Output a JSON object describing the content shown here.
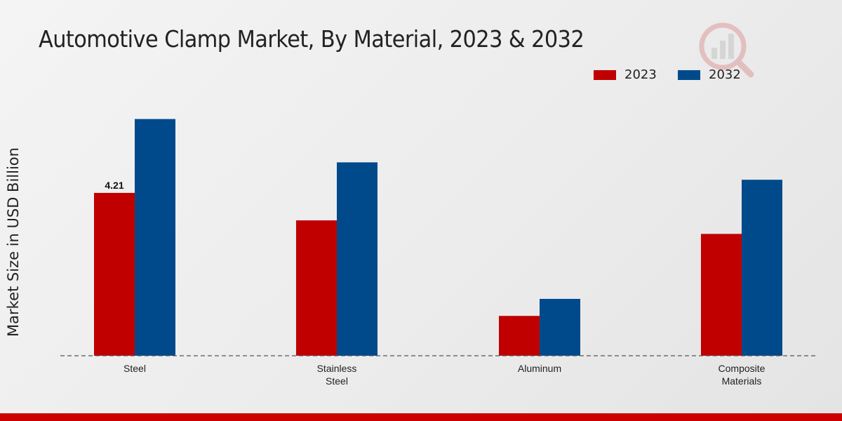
{
  "header": {
    "title": "Automotive Clamp Market, By Material, 2023 & 2032"
  },
  "legend": [
    {
      "label": "2023",
      "color": "#c00000"
    },
    {
      "label": "2032",
      "color": "#004a8c"
    }
  ],
  "logo": {
    "icon": "bar-chart-magnifier-icon",
    "color": "#c00000"
  },
  "footer": {
    "bar_color": "#cc0000"
  },
  "chart_data": {
    "type": "bar",
    "title": "Automotive Clamp Market, By Material, 2023 & 2032",
    "xlabel": "",
    "ylabel": "Market Size in USD Billion",
    "categories": [
      [
        "Steel"
      ],
      [
        "Stainless",
        "Steel"
      ],
      [
        "Aluminum"
      ],
      [
        "Composite",
        "Materials"
      ]
    ],
    "series": [
      {
        "name": "2023",
        "color": "#c00000",
        "values": [
          4.21,
          3.5,
          1.03,
          3.15
        ]
      },
      {
        "name": "2032",
        "color": "#004a8c",
        "values": [
          6.12,
          5.0,
          1.47,
          4.55
        ]
      }
    ],
    "data_labels": [
      {
        "series": 0,
        "index": 0,
        "text": "4.21"
      }
    ],
    "ylim": [
      0,
      8
    ],
    "grid": false,
    "legend_position": "top-right"
  }
}
